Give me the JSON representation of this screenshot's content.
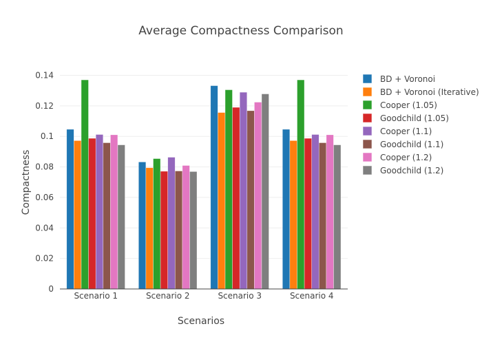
{
  "chart_data": {
    "type": "bar",
    "title": "Average Compactness Comparison",
    "xlabel": "Scenarios",
    "ylabel": "Compactness",
    "ylim": [
      0,
      0.14
    ],
    "yticks": [
      "0",
      "0.02",
      "0.04",
      "0.06",
      "0.08",
      "0.1",
      "0.12",
      "0.14"
    ],
    "ytick_values": [
      0,
      0.02,
      0.04,
      0.06,
      0.08,
      0.1,
      0.12,
      0.14
    ],
    "grid": true,
    "legend_position": "right",
    "categories": [
      "Scenario 1",
      "Scenario 2",
      "Scenario 3",
      "Scenario 4"
    ],
    "series": [
      {
        "name": "BD + Voronoi",
        "color": "#1f77b4",
        "values": [
          0.1046,
          0.0832,
          0.1332,
          0.1046
        ]
      },
      {
        "name": "BD + Voronoi (Iterative)",
        "color": "#ff7f0e",
        "values": [
          0.0972,
          0.0794,
          0.1156,
          0.0972
        ]
      },
      {
        "name": "Cooper (1.05)",
        "color": "#2ca02c",
        "values": [
          0.137,
          0.0854,
          0.1305,
          0.137
        ]
      },
      {
        "name": "Goodchild (1.05)",
        "color": "#d62728",
        "values": [
          0.0987,
          0.0771,
          0.119,
          0.0987
        ]
      },
      {
        "name": "Cooper (1.1)",
        "color": "#9467bd",
        "values": [
          0.1012,
          0.0863,
          0.1289,
          0.1012
        ]
      },
      {
        "name": "Goodchild (1.1)",
        "color": "#8c564b",
        "values": [
          0.0958,
          0.0773,
          0.1168,
          0.0958
        ]
      },
      {
        "name": "Cooper (1.2)",
        "color": "#e377c2",
        "values": [
          0.101,
          0.0809,
          0.1224,
          0.101
        ]
      },
      {
        "name": "Goodchild (1.2)",
        "color": "#7f7f7f",
        "values": [
          0.0944,
          0.0769,
          0.1278,
          0.0944
        ]
      }
    ]
  }
}
